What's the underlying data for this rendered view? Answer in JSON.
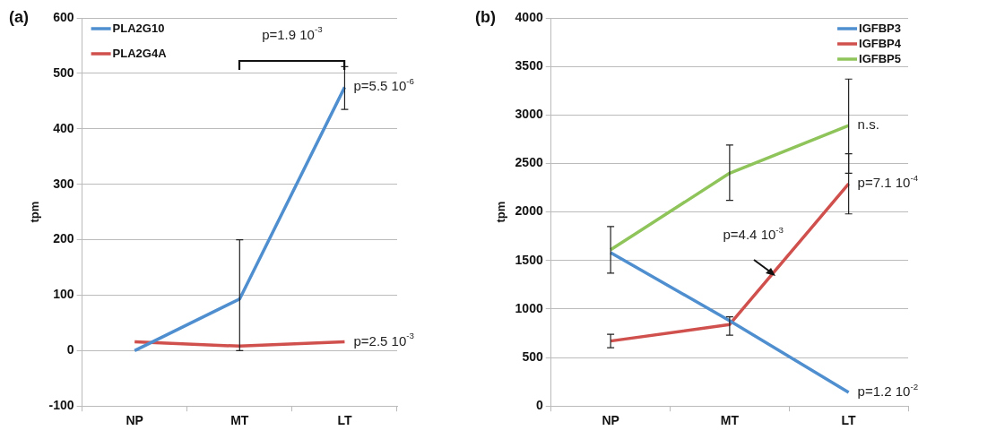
{
  "chart_data": [
    {
      "type": "line",
      "title": "(a)",
      "ylabel": "tpm",
      "categories": [
        "NP",
        "MT",
        "LT"
      ],
      "series": [
        {
          "name": "PLA2G10",
          "color": "#4f8fd0",
          "values": [
            0,
            93,
            475
          ],
          "errors": [
            null,
            [
              0,
              200
            ],
            [
              435,
              512
            ]
          ]
        },
        {
          "name": "PLA2G4A",
          "color": "#d0504d",
          "values": [
            16,
            8,
            16
          ]
        }
      ],
      "ylim": [
        -100,
        600
      ],
      "yticks": [
        -100,
        0,
        100,
        200,
        300,
        400,
        500,
        600
      ],
      "grid": "y",
      "legend": "top left",
      "marker": "none",
      "annotations": [
        "p=1.9 10$^{-3}$",
        {
          "text": "p=5.5 10$^{-6}$",
          "x": "LT",
          "y": 475
        },
        {
          "text": "p=2.5 10$^{-3}$",
          "x": "LT",
          "y": 16
        }
      ]
    },
    {
      "type": "line",
      "title": "(b)",
      "ylabel": "tpm",
      "categories": [
        "NP",
        "MT",
        "LT"
      ],
      "series": [
        {
          "name": "IGFBP3",
          "color": "#4f8fd0",
          "values": [
            1580,
            880,
            140
          ]
        },
        {
          "name": "IGFBP4",
          "color": "#d0504d",
          "values": [
            670,
            840,
            2290
          ],
          "errors": [
            [
              600,
              740
            ],
            [
              730,
              920
            ],
            [
              1980,
              2600
            ]
          ]
        },
        {
          "name": "IGFBP5",
          "color": "#8fc45a",
          "values": [
            1610,
            2400,
            2890
          ],
          "errors": [
            [
              1370,
              1850
            ],
            [
              2120,
              2690
            ],
            [
              2400,
              3370
            ]
          ]
        }
      ],
      "ylim": [
        0,
        4000
      ],
      "yticks": [
        0,
        500,
        1000,
        1500,
        2000,
        2500,
        3000,
        3500,
        4000
      ],
      "grid": "y",
      "legend": "top right",
      "marker": "none",
      "annotations": [
        "p=4.4 10$^{-3}$",
        {
          "text": "n.s.",
          "x": "LT",
          "y": 2890
        },
        {
          "text": "p=7.1 10$^{-4}$",
          "x": "LT",
          "y": 2290
        },
        {
          "text": "p=1.2 10$^{-2}$",
          "x": "LT",
          "y": 140
        }
      ]
    }
  ]
}
